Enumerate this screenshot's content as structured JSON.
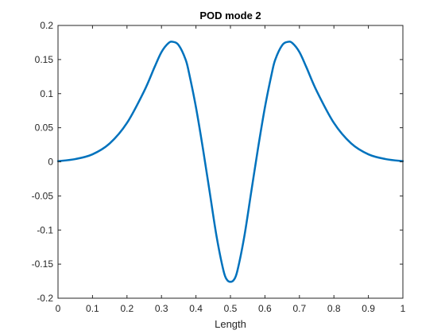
{
  "chart_data": {
    "type": "line",
    "title": "POD mode 2",
    "xlabel": "Length",
    "ylabel": "",
    "xlim": [
      0,
      1
    ],
    "ylim": [
      -0.2,
      0.2
    ],
    "xticks": [
      0,
      0.1,
      0.2,
      0.3,
      0.4,
      0.5,
      0.6,
      0.7,
      0.8,
      0.9,
      1
    ],
    "xtick_labels": [
      "0",
      "0.1",
      "0.2",
      "0.3",
      "0.4",
      "0.5",
      "0.6",
      "0.7",
      "0.8",
      "0.9",
      "1"
    ],
    "yticks": [
      -0.2,
      -0.15,
      -0.1,
      -0.05,
      0,
      0.05,
      0.1,
      0.15,
      0.2
    ],
    "ytick_labels": [
      "-0.2",
      "-0.15",
      "-0.1",
      "-0.05",
      "0",
      "0.05",
      "0.1",
      "0.15",
      "0.2"
    ],
    "grid": false,
    "legend": "none",
    "series": [
      {
        "color": "#0072BD",
        "x": [
          0,
          0.05,
          0.1,
          0.15,
          0.2,
          0.25,
          0.28,
          0.3,
          0.32,
          0.333,
          0.35,
          0.37,
          0.38,
          0.4,
          0.42,
          0.44,
          0.46,
          0.48,
          0.49,
          0.5,
          0.51,
          0.52,
          0.54,
          0.56,
          0.58,
          0.6,
          0.62,
          0.63,
          0.65,
          0.667,
          0.68,
          0.7,
          0.72,
          0.75,
          0.8,
          0.85,
          0.9,
          0.95,
          1
        ],
        "y": [
          0.001,
          0.004,
          0.011,
          0.027,
          0.057,
          0.104,
          0.139,
          0.161,
          0.174,
          0.176,
          0.171,
          0.15,
          0.13,
          0.08,
          0.02,
          -0.045,
          -0.11,
          -0.16,
          -0.173,
          -0.176,
          -0.173,
          -0.16,
          -0.11,
          -0.045,
          0.02,
          0.08,
          0.13,
          0.15,
          0.171,
          0.176,
          0.174,
          0.161,
          0.139,
          0.104,
          0.057,
          0.027,
          0.011,
          0.004,
          0.001
        ]
      }
    ]
  }
}
